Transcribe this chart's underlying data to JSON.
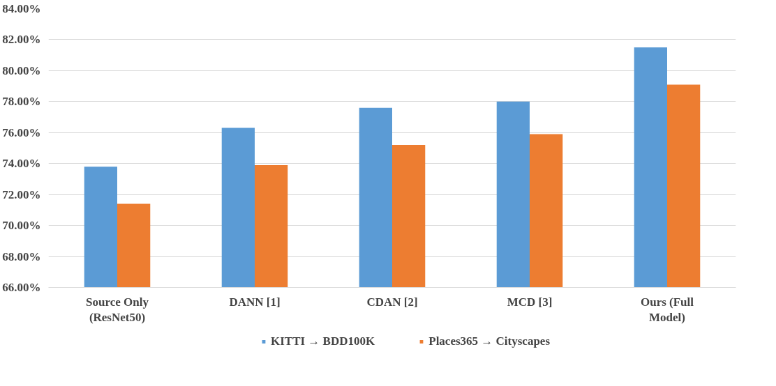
{
  "chart_data": {
    "type": "bar",
    "categories": [
      "Source Only (ResNet50)",
      "DANN [1]",
      "CDAN [2]",
      "MCD [3]",
      "Ours (Full Model)"
    ],
    "series": [
      {
        "name": "KITTI → BDD100K",
        "color": "#5b9bd5",
        "values": [
          73.8,
          76.3,
          77.6,
          78.0,
          81.5
        ]
      },
      {
        "name": "Places365 → Cityscapes",
        "color": "#ed7d31",
        "values": [
          71.4,
          73.9,
          75.2,
          75.9,
          79.1
        ]
      }
    ],
    "ylim": [
      66,
      84
    ],
    "yticks": [
      {
        "value": 66,
        "label": "66.00%"
      },
      {
        "value": 68,
        "label": "68.00%"
      },
      {
        "value": 70,
        "label": "70.00%"
      },
      {
        "value": 72,
        "label": "72.00%"
      },
      {
        "value": 74,
        "label": "74.00%"
      },
      {
        "value": 76,
        "label": "76.00%"
      },
      {
        "value": 78,
        "label": "78.00%"
      },
      {
        "value": 80,
        "label": "80.00%"
      },
      {
        "value": 82,
        "label": "82.00%"
      },
      {
        "value": 84,
        "label": "84.00%"
      }
    ],
    "grid": "y",
    "legend": "bottom"
  }
}
